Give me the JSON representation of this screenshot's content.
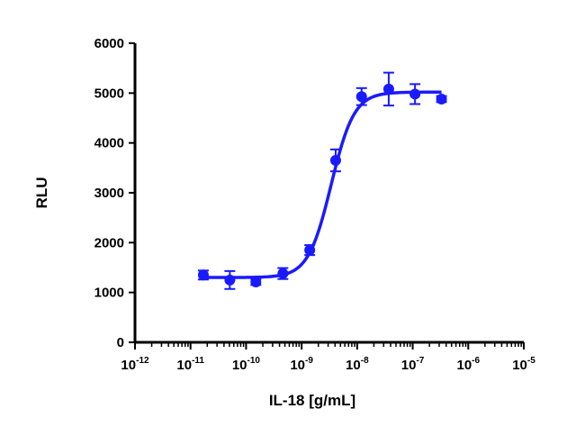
{
  "chart_data": {
    "type": "scatter",
    "title": "",
    "xlabel": "IL-18 [g/mL]",
    "ylabel": "RLU",
    "x_scale": "log",
    "xlim": [
      1e-12,
      1e-05
    ],
    "ylim": [
      0,
      6000
    ],
    "x_ticks": [
      {
        "base": "10",
        "exp": "-12"
      },
      {
        "base": "10",
        "exp": "-11"
      },
      {
        "base": "10",
        "exp": "-10"
      },
      {
        "base": "10",
        "exp": "-9"
      },
      {
        "base": "10",
        "exp": "-8"
      },
      {
        "base": "10",
        "exp": "-7"
      },
      {
        "base": "10",
        "exp": "-6"
      },
      {
        "base": "10",
        "exp": "-5"
      }
    ],
    "y_ticks": [
      "0",
      "1000",
      "2000",
      "3000",
      "4000",
      "5000",
      "6000"
    ],
    "grid": false,
    "color": "#1a1aff",
    "series": [
      {
        "points": [
          {
            "x": 1.7e-11,
            "y": 1350,
            "err": 90
          },
          {
            "x": 5.1e-11,
            "y": 1250,
            "err": 180
          },
          {
            "x": 1.5e-10,
            "y": 1210,
            "err": 60
          },
          {
            "x": 4.6e-10,
            "y": 1380,
            "err": 110
          },
          {
            "x": 1.4e-09,
            "y": 1850,
            "err": 100
          },
          {
            "x": 4.1e-09,
            "y": 3650,
            "err": 220
          },
          {
            "x": 1.2e-08,
            "y": 4930,
            "err": 170
          },
          {
            "x": 3.7e-08,
            "y": 5080,
            "err": 330
          },
          {
            "x": 1.1e-07,
            "y": 4980,
            "err": 200
          },
          {
            "x": 3.3e-07,
            "y": 4880,
            "err": 60
          }
        ],
        "fit": {
          "model": "4PL",
          "bottom": 1300,
          "top": 5020,
          "ec50": 3.4e-09,
          "hill": 2.1
        }
      }
    ]
  }
}
